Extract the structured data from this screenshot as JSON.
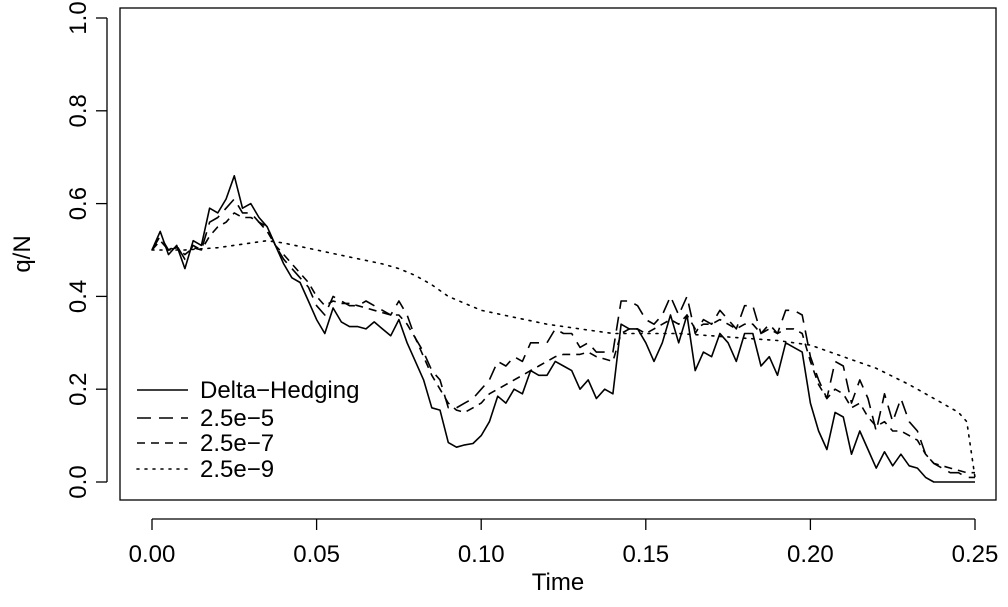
{
  "chart_data": {
    "type": "line",
    "title": "",
    "xlabel": "Time",
    "ylabel": "q/N",
    "xlim": [
      0.0,
      0.25
    ],
    "ylim": [
      0.0,
      1.0
    ],
    "xticks": [
      "0.00",
      "0.05",
      "0.10",
      "0.15",
      "0.20",
      "0.25"
    ],
    "yticks": [
      "0.0",
      "0.2",
      "0.4",
      "0.6",
      "0.8",
      "1.0"
    ],
    "grid": false,
    "legend_position": "bottom-left",
    "series": [
      {
        "name": "Delta−Hedging",
        "dash": "solid",
        "x": [
          0,
          0.0025,
          0.005,
          0.0075,
          0.01,
          0.0125,
          0.015,
          0.0175,
          0.02,
          0.0225,
          0.025,
          0.0275,
          0.03,
          0.0325,
          0.035,
          0.0375,
          0.04,
          0.0425,
          0.045,
          0.0475,
          0.05,
          0.0525,
          0.055,
          0.0575,
          0.06,
          0.0625,
          0.065,
          0.0675,
          0.07,
          0.0725,
          0.075,
          0.0775,
          0.08,
          0.0825,
          0.085,
          0.0875,
          0.09,
          0.0925,
          0.095,
          0.0975,
          0.1,
          0.1025,
          0.105,
          0.1075,
          0.11,
          0.1125,
          0.115,
          0.1175,
          0.12,
          0.1225,
          0.125,
          0.1275,
          0.13,
          0.1325,
          0.135,
          0.1375,
          0.14,
          0.1425,
          0.145,
          0.1475,
          0.15,
          0.1525,
          0.155,
          0.1575,
          0.16,
          0.1625,
          0.165,
          0.1675,
          0.17,
          0.1725,
          0.175,
          0.1775,
          0.18,
          0.1825,
          0.185,
          0.1875,
          0.19,
          0.1925,
          0.195,
          0.1975,
          0.2,
          0.2025,
          0.205,
          0.2075,
          0.21,
          0.2125,
          0.215,
          0.2175,
          0.22,
          0.2225,
          0.225,
          0.2275,
          0.23,
          0.2325,
          0.235,
          0.2375,
          0.24,
          0.2425,
          0.245,
          0.2475,
          0.25
        ],
        "y": [
          0.5,
          0.54,
          0.49,
          0.51,
          0.46,
          0.52,
          0.51,
          0.59,
          0.58,
          0.61,
          0.66,
          0.59,
          0.6,
          0.57,
          0.55,
          0.51,
          0.47,
          0.44,
          0.43,
          0.39,
          0.35,
          0.32,
          0.375,
          0.345,
          0.335,
          0.335,
          0.33,
          0.345,
          0.33,
          0.315,
          0.35,
          0.3,
          0.26,
          0.22,
          0.16,
          0.155,
          0.085,
          0.075,
          0.08,
          0.083,
          0.1,
          0.13,
          0.185,
          0.17,
          0.2,
          0.19,
          0.24,
          0.23,
          0.23,
          0.26,
          0.25,
          0.24,
          0.2,
          0.22,
          0.18,
          0.2,
          0.19,
          0.34,
          0.33,
          0.33,
          0.3,
          0.26,
          0.3,
          0.36,
          0.3,
          0.36,
          0.24,
          0.28,
          0.27,
          0.32,
          0.3,
          0.26,
          0.32,
          0.32,
          0.25,
          0.27,
          0.23,
          0.3,
          0.29,
          0.28,
          0.17,
          0.11,
          0.07,
          0.15,
          0.14,
          0.06,
          0.11,
          0.07,
          0.03,
          0.065,
          0.035,
          0.06,
          0.035,
          0.03,
          0.01,
          0.0,
          0.0,
          0.0,
          0.0,
          0.0,
          0.0
        ]
      },
      {
        "name": "2.5e−5",
        "dash": "long-dash",
        "x": [
          0,
          0.0025,
          0.005,
          0.0075,
          0.01,
          0.0125,
          0.015,
          0.0175,
          0.02,
          0.0225,
          0.025,
          0.0275,
          0.03,
          0.0325,
          0.035,
          0.0375,
          0.04,
          0.0425,
          0.045,
          0.0475,
          0.05,
          0.0525,
          0.055,
          0.0575,
          0.06,
          0.0625,
          0.065,
          0.0675,
          0.07,
          0.0725,
          0.075,
          0.0775,
          0.08,
          0.0825,
          0.085,
          0.0875,
          0.09,
          0.0925,
          0.095,
          0.0975,
          0.1,
          0.1025,
          0.105,
          0.1075,
          0.11,
          0.1125,
          0.115,
          0.1175,
          0.12,
          0.1225,
          0.125,
          0.1275,
          0.13,
          0.1325,
          0.135,
          0.1375,
          0.14,
          0.1425,
          0.145,
          0.1475,
          0.15,
          0.1525,
          0.155,
          0.1575,
          0.16,
          0.1625,
          0.165,
          0.1675,
          0.17,
          0.1725,
          0.175,
          0.1775,
          0.18,
          0.1825,
          0.185,
          0.1875,
          0.19,
          0.1925,
          0.195,
          0.1975,
          0.2,
          0.2025,
          0.205,
          0.2075,
          0.21,
          0.2125,
          0.215,
          0.2175,
          0.22,
          0.2225,
          0.225,
          0.2275,
          0.23,
          0.2325,
          0.235,
          0.2375,
          0.24,
          0.2425,
          0.245,
          0.2475,
          0.25
        ],
        "y": [
          0.5,
          0.53,
          0.5,
          0.51,
          0.48,
          0.51,
          0.5,
          0.56,
          0.57,
          0.59,
          0.61,
          0.58,
          0.58,
          0.56,
          0.55,
          0.51,
          0.48,
          0.46,
          0.44,
          0.42,
          0.38,
          0.36,
          0.4,
          0.39,
          0.38,
          0.38,
          0.39,
          0.38,
          0.37,
          0.36,
          0.39,
          0.36,
          0.31,
          0.28,
          0.24,
          0.22,
          0.16,
          0.16,
          0.17,
          0.18,
          0.2,
          0.22,
          0.26,
          0.25,
          0.27,
          0.26,
          0.3,
          0.3,
          0.3,
          0.33,
          0.32,
          0.32,
          0.29,
          0.3,
          0.28,
          0.28,
          0.28,
          0.39,
          0.39,
          0.38,
          0.35,
          0.34,
          0.36,
          0.4,
          0.36,
          0.4,
          0.32,
          0.35,
          0.34,
          0.37,
          0.35,
          0.33,
          0.38,
          0.38,
          0.32,
          0.34,
          0.32,
          0.37,
          0.37,
          0.36,
          0.27,
          0.22,
          0.18,
          0.26,
          0.25,
          0.17,
          0.22,
          0.18,
          0.11,
          0.19,
          0.13,
          0.18,
          0.13,
          0.11,
          0.06,
          0.04,
          0.03,
          0.02,
          0.02,
          0.01,
          0.01
        ]
      },
      {
        "name": "2.5e−7",
        "dash": "short-dash",
        "x": [
          0,
          0.0025,
          0.005,
          0.0075,
          0.01,
          0.0125,
          0.015,
          0.0175,
          0.02,
          0.0225,
          0.025,
          0.0275,
          0.03,
          0.0325,
          0.035,
          0.0375,
          0.04,
          0.0425,
          0.045,
          0.0475,
          0.05,
          0.0525,
          0.055,
          0.0575,
          0.06,
          0.0625,
          0.065,
          0.0675,
          0.07,
          0.0725,
          0.075,
          0.0775,
          0.08,
          0.0825,
          0.085,
          0.0875,
          0.09,
          0.0925,
          0.095,
          0.0975,
          0.1,
          0.1025,
          0.105,
          0.1075,
          0.11,
          0.1125,
          0.115,
          0.1175,
          0.12,
          0.1225,
          0.125,
          0.1275,
          0.13,
          0.1325,
          0.135,
          0.1375,
          0.14,
          0.1425,
          0.145,
          0.1475,
          0.15,
          0.1525,
          0.155,
          0.1575,
          0.16,
          0.1625,
          0.165,
          0.1675,
          0.17,
          0.1725,
          0.175,
          0.1775,
          0.18,
          0.1825,
          0.185,
          0.1875,
          0.19,
          0.1925,
          0.195,
          0.1975,
          0.2,
          0.2025,
          0.205,
          0.2075,
          0.21,
          0.2125,
          0.215,
          0.2175,
          0.22,
          0.2225,
          0.225,
          0.2275,
          0.23,
          0.2325,
          0.235,
          0.2375,
          0.24,
          0.2425,
          0.245,
          0.2475,
          0.25
        ],
        "y": [
          0.5,
          0.52,
          0.5,
          0.505,
          0.49,
          0.505,
          0.5,
          0.53,
          0.55,
          0.56,
          0.58,
          0.57,
          0.57,
          0.56,
          0.54,
          0.51,
          0.49,
          0.47,
          0.45,
          0.43,
          0.4,
          0.38,
          0.39,
          0.385,
          0.385,
          0.38,
          0.375,
          0.37,
          0.365,
          0.36,
          0.36,
          0.34,
          0.31,
          0.27,
          0.23,
          0.2,
          0.17,
          0.155,
          0.15,
          0.16,
          0.17,
          0.19,
          0.2,
          0.21,
          0.22,
          0.23,
          0.24,
          0.25,
          0.26,
          0.27,
          0.275,
          0.275,
          0.275,
          0.28,
          0.27,
          0.265,
          0.26,
          0.32,
          0.33,
          0.33,
          0.32,
          0.33,
          0.34,
          0.35,
          0.34,
          0.36,
          0.33,
          0.34,
          0.34,
          0.35,
          0.34,
          0.33,
          0.34,
          0.34,
          0.32,
          0.33,
          0.32,
          0.33,
          0.33,
          0.32,
          0.26,
          0.21,
          0.18,
          0.2,
          0.19,
          0.16,
          0.17,
          0.14,
          0.12,
          0.13,
          0.11,
          0.11,
          0.1,
          0.09,
          0.06,
          0.04,
          0.035,
          0.03,
          0.025,
          0.02,
          0.02
        ]
      },
      {
        "name": "2.5e−9",
        "dash": "dotted",
        "x": [
          0,
          0.01,
          0.02,
          0.03,
          0.035,
          0.04,
          0.05,
          0.06,
          0.07,
          0.075,
          0.08,
          0.085,
          0.09,
          0.1,
          0.11,
          0.12,
          0.13,
          0.14,
          0.15,
          0.16,
          0.17,
          0.18,
          0.19,
          0.2,
          0.21,
          0.22,
          0.23,
          0.24,
          0.245,
          0.2475,
          0.25
        ],
        "y": [
          0.5,
          0.5,
          0.505,
          0.515,
          0.52,
          0.515,
          0.5,
          0.485,
          0.47,
          0.46,
          0.445,
          0.425,
          0.4,
          0.37,
          0.355,
          0.34,
          0.33,
          0.32,
          0.32,
          0.32,
          0.315,
          0.31,
          0.305,
          0.295,
          0.27,
          0.245,
          0.21,
          0.17,
          0.15,
          0.13,
          0.01
        ]
      }
    ]
  },
  "legend": {
    "items": [
      "Delta−Hedging",
      "2.5e−5",
      "2.5e−7",
      "2.5e−9"
    ]
  }
}
